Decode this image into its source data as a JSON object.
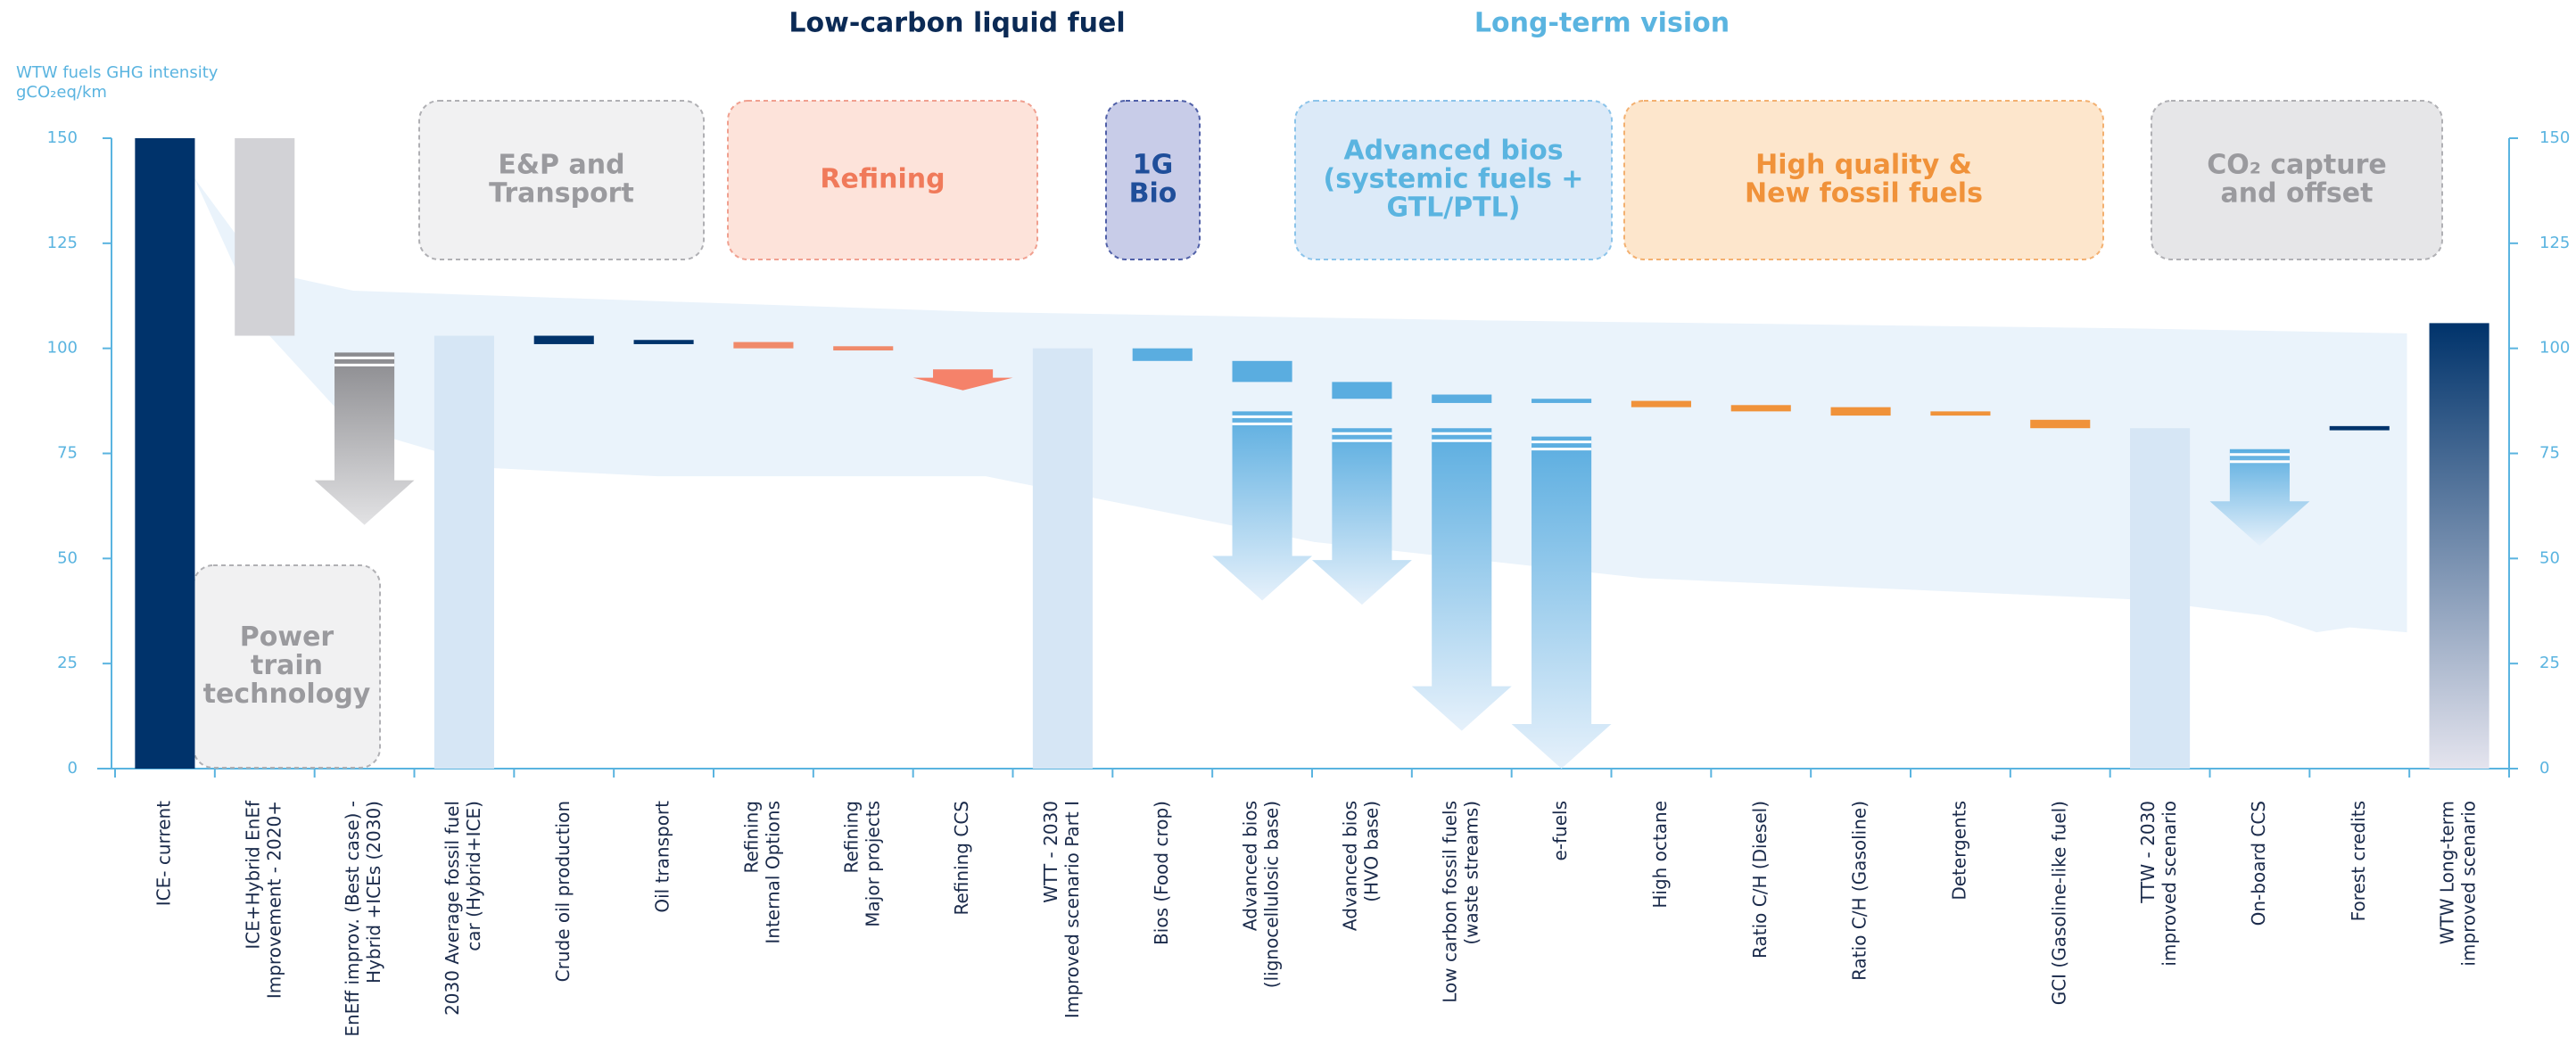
{
  "chart_data": {
    "type": "waterfall",
    "headers": [
      {
        "text": "Low-carbon liquid fuel",
        "color": "#0b2a55"
      },
      {
        "text": "Long-term vision",
        "color": "#5ab4e0"
      }
    ],
    "y_label": [
      "WTW fuels GHG intensity",
      "gCO₂eq/km"
    ],
    "ylim": [
      0,
      150
    ],
    "yticks": [
      0,
      25,
      50,
      75,
      100,
      125,
      150
    ],
    "categories": [
      [
        "ICE- current"
      ],
      [
        "ICE+Hybrid EnEf",
        "Improvement - 2020+"
      ],
      [
        "EnEff improv. (Best case) -",
        "Hybrid +ICEs (2030)"
      ],
      [
        "2030 Average fossil fuel",
        "car (Hybrid+ICE)"
      ],
      [
        "Crude oil production"
      ],
      [
        "Oil transport"
      ],
      [
        "Refining",
        "Internal Options"
      ],
      [
        "Refining",
        "Major projects"
      ],
      [
        "Refining CCS"
      ],
      [
        "WTT - 2030",
        "Improved scenario Part I"
      ],
      [
        "Bios (Food crop)"
      ],
      [
        "Advanced bios",
        "(lignocellulosic base)"
      ],
      [
        "Advanced bios",
        "(HVO base)"
      ],
      [
        "Low carbon fossil fuels",
        "(waste streams)"
      ],
      [
        "e-fuels"
      ],
      [
        "High octane"
      ],
      [
        "Ratio C/H (Diesel)"
      ],
      [
        "Ratio C/H (Gasoline)"
      ],
      [
        "Detergents"
      ],
      [
        "GCI (Gasoline-like fuel)"
      ],
      [
        "TTW - 2030",
        "improved scenario"
      ],
      [
        "On-board CCS"
      ],
      [
        "Forest credits"
      ],
      [
        "WTW Long-term",
        "improved scenario"
      ]
    ],
    "steps": [
      {
        "bar": [
          0,
          150
        ],
        "color": "#00336b"
      },
      {
        "bar": [
          103,
          150
        ],
        "color": "#d2d2d6"
      },
      {
        "arrow": [
          58,
          99
        ],
        "color": "#8a8a8e",
        "gradient": true
      },
      {
        "bar": [
          0,
          103
        ],
        "color": "#d6e6f5"
      },
      {
        "bar": [
          101,
          103
        ],
        "color": "#00336b"
      },
      {
        "bar": [
          101,
          102
        ],
        "color": "#00336b"
      },
      {
        "bar": [
          100,
          101.5
        ],
        "color": "#f08a6a"
      },
      {
        "bar": [
          99.5,
          100.5
        ],
        "color": "#f08a6a"
      },
      {
        "arrow": [
          90,
          95
        ],
        "color": "#f5826a"
      },
      {
        "bar": [
          0,
          100
        ],
        "color": "#d6e6f5"
      },
      {
        "bar": [
          97,
          100
        ],
        "color": "#5aade0"
      },
      {
        "bar": [
          92,
          97
        ],
        "color": "#5aade0",
        "arrow": [
          40,
          85
        ],
        "gradient": true
      },
      {
        "bar": [
          88,
          92
        ],
        "color": "#5aade0",
        "arrow": [
          39,
          81
        ],
        "gradient": true
      },
      {
        "bar": [
          87,
          89
        ],
        "color": "#5aade0",
        "arrow": [
          9,
          81
        ],
        "gradient": true
      },
      {
        "bar": [
          87,
          88
        ],
        "color": "#5aade0",
        "arrow": [
          0,
          79
        ],
        "gradient": true
      },
      {
        "bar": [
          86,
          87.5
        ],
        "color": "#f0923a"
      },
      {
        "bar": [
          85,
          86.5
        ],
        "color": "#f0923a"
      },
      {
        "bar": [
          84,
          86
        ],
        "color": "#f0923a"
      },
      {
        "bar": [
          84,
          85
        ],
        "color": "#f0923a"
      },
      {
        "bar": [
          81,
          83
        ],
        "color": "#f0923a"
      },
      {
        "bar": [
          0,
          81
        ],
        "color": "#d6e6f5"
      },
      {
        "arrow": [
          53,
          76
        ],
        "color": "#5aade0",
        "gradient": true
      },
      {
        "bar": [
          80.5,
          81.5
        ],
        "color": "#00336b"
      },
      {
        "bar": [
          0,
          106
        ],
        "color": "#00336b",
        "gradient": true
      }
    ],
    "groups": [
      {
        "lines": [
          "Power",
          "train",
          "technology"
        ],
        "color": "#9a9a9e",
        "fill": "#f1f1f2",
        "stroke": "#b0b0b4"
      },
      {
        "lines": [
          "E&P and",
          "Transport"
        ],
        "color": "#9a9a9e",
        "fill": "#f1f1f2",
        "stroke": "#b0b0b4"
      },
      {
        "lines": [
          "Refining"
        ],
        "color": "#f07a5a",
        "fill": "#fde3da",
        "stroke": "#f0a090"
      },
      {
        "lines": [
          "1G",
          "Bio"
        ],
        "color": "#1f4e9a",
        "fill": "#c8cce8",
        "stroke": "#5060a8"
      },
      {
        "lines": [
          "Advanced bios",
          "(systemic fuels +",
          "GTL/PTL)"
        ],
        "color": "#5ab4e0",
        "fill": "#dceaf8",
        "stroke": "#8cc4ea"
      },
      {
        "lines": [
          "High quality &",
          "New fossil fuels"
        ],
        "color": "#f0923a",
        "fill": "#fde6cc",
        "stroke": "#f3b070"
      },
      {
        "lines": [
          "CO₂ capture",
          "and offset"
        ],
        "color": "#9a9a9e",
        "fill": "#e6e6e8",
        "stroke": "#b0b0b4"
      }
    ]
  }
}
